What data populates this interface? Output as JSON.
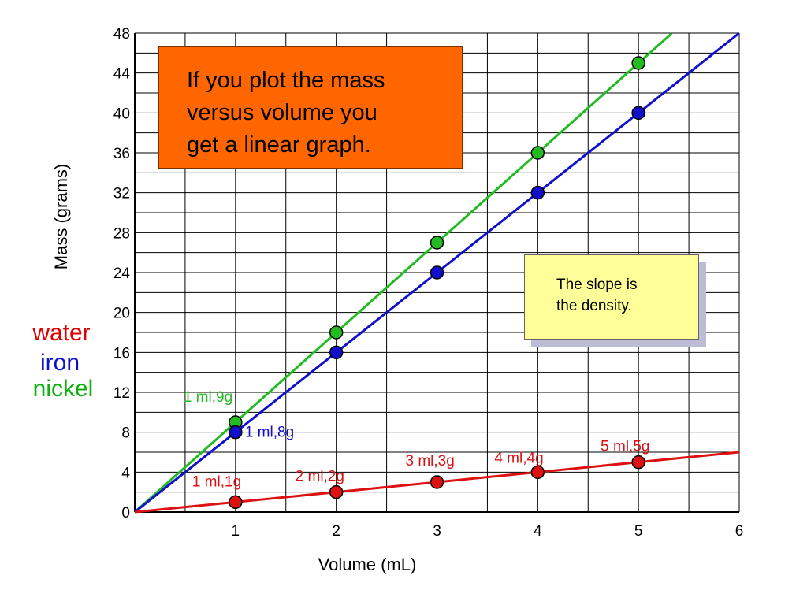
{
  "chart_data": {
    "type": "line",
    "ylabel": "Mass  (grams)",
    "xlabel": "Volume (mL)",
    "xlim": [
      0,
      6
    ],
    "ylim": [
      0,
      48
    ],
    "x_ticks": [
      "1",
      "2",
      "3",
      "4",
      "5",
      "6"
    ],
    "y_ticks": [
      "0",
      "4",
      "8",
      "12",
      "16",
      "20",
      "24",
      "28",
      "32",
      "36",
      "40",
      "44",
      "48"
    ],
    "grid": true,
    "legend": [
      {
        "label": "water",
        "color": "#e00000"
      },
      {
        "label": "iron",
        "color": "#1010d0"
      },
      {
        "label": "nickel",
        "color": "#10b010"
      }
    ],
    "series": [
      {
        "name": "nickel",
        "color": "#22bb22",
        "slope": 9,
        "line_x_end": 5.33,
        "points": [
          [
            1,
            9
          ],
          [
            2,
            18
          ],
          [
            3,
            27
          ],
          [
            4,
            36
          ],
          [
            5,
            45
          ]
        ],
        "point_labels": [
          {
            "index": 0,
            "text": "1 ml,9g"
          }
        ]
      },
      {
        "name": "iron",
        "color": "#1010cc",
        "slope": 8,
        "line_x_end": 6,
        "points": [
          [
            1,
            8
          ],
          [
            2,
            16
          ],
          [
            3,
            24
          ],
          [
            4,
            32
          ],
          [
            5,
            40
          ]
        ],
        "point_labels": [
          {
            "index": 0,
            "text": "1 ml,8g"
          }
        ]
      },
      {
        "name": "water",
        "color": "#dd1111",
        "slope": 1,
        "line_x_end": 6,
        "points": [
          [
            1,
            1
          ],
          [
            2,
            2
          ],
          [
            3,
            3
          ],
          [
            4,
            4
          ],
          [
            5,
            5
          ]
        ],
        "point_labels": [
          {
            "index": 0,
            "text": "1 ml,1g"
          },
          {
            "index": 1,
            "text": "2 ml,2g"
          },
          {
            "index": 2,
            "text": "3 ml,3g"
          },
          {
            "index": 3,
            "text": "4 ml,4g"
          },
          {
            "index": 4,
            "text": "5 ml,5g"
          }
        ]
      }
    ]
  },
  "annotations": {
    "linear_note": [
      "If you plot the mass",
      "versus volume you",
      "get a linear graph."
    ],
    "slope_note": [
      "The slope is",
      "the density."
    ]
  }
}
